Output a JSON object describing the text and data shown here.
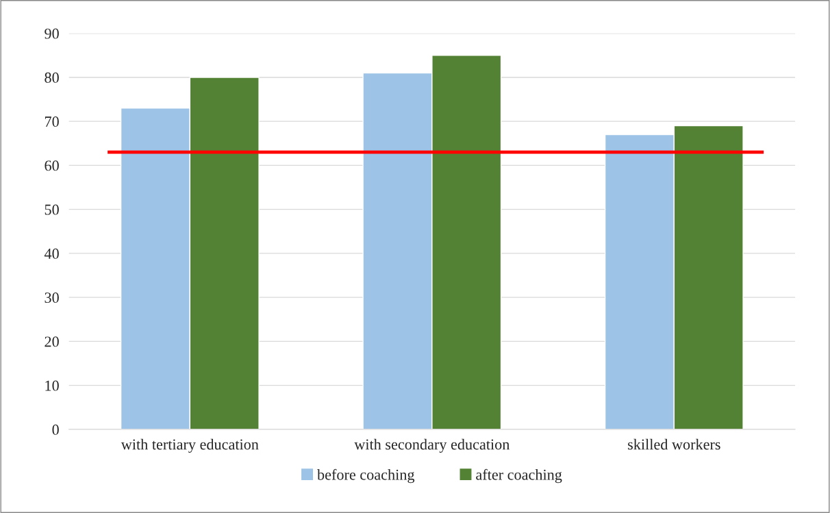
{
  "chart_data": {
    "type": "bar",
    "categories": [
      "with tertiary education",
      "with secondary education",
      "skilled workers"
    ],
    "series": [
      {
        "name": "before coaching",
        "color": "#9dc3e6",
        "values": [
          73,
          81,
          67
        ]
      },
      {
        "name": "after coaching",
        "color": "#548235",
        "values": [
          80,
          85,
          69
        ]
      }
    ],
    "ylim": [
      0,
      90
    ],
    "yticks": [
      0,
      10,
      20,
      30,
      40,
      50,
      60,
      70,
      80,
      90
    ],
    "ref_lines": [
      {
        "axis": "y",
        "value": 63,
        "color": "#ff0000"
      }
    ],
    "grid": "y",
    "legend": "bottom"
  }
}
